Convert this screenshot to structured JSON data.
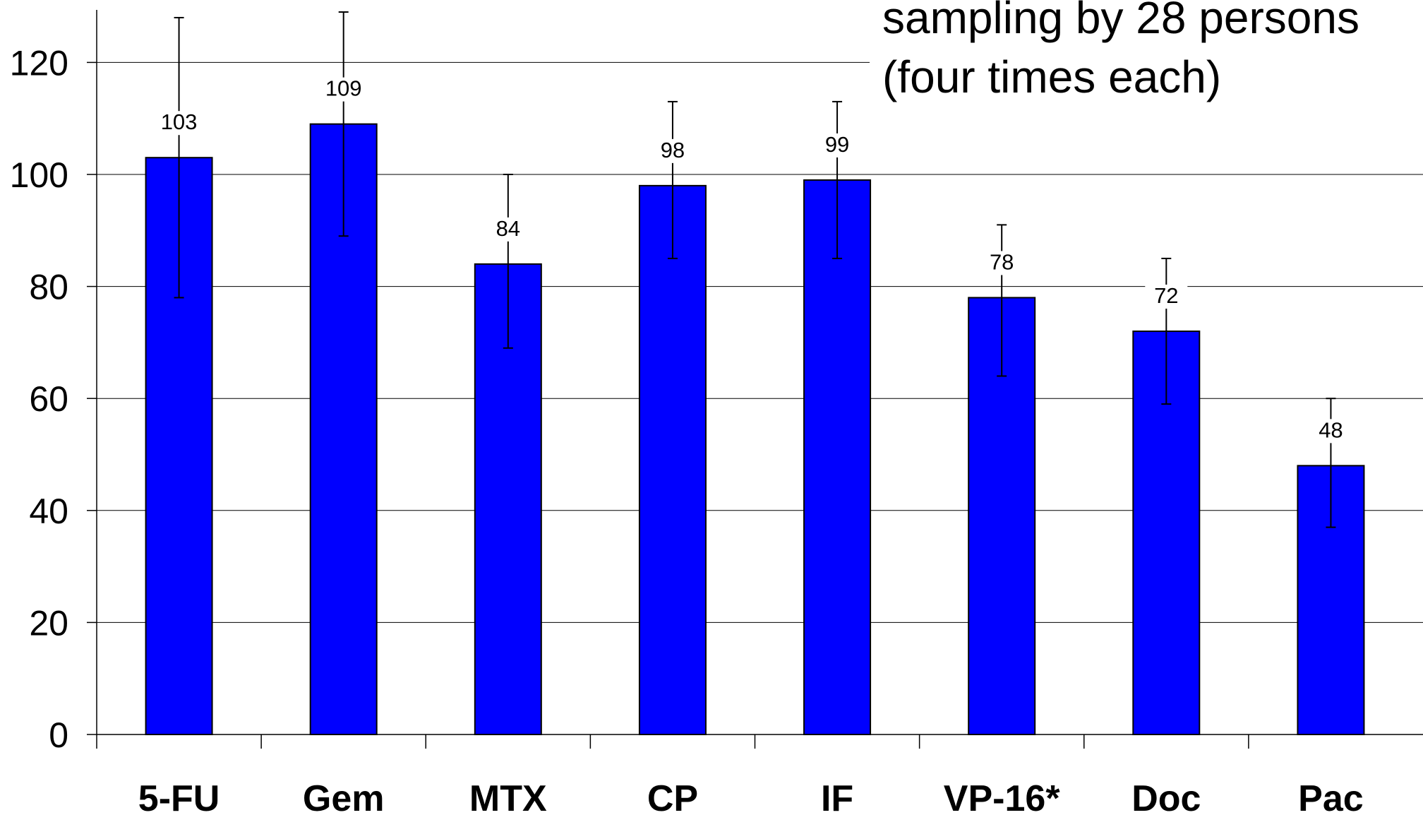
{
  "chart_data": {
    "type": "bar",
    "title": "",
    "xlabel": "",
    "ylabel": "",
    "ylim": [
      0,
      130
    ],
    "yticks": [
      0,
      20,
      40,
      60,
      80,
      100,
      120
    ],
    "grid": true,
    "categories": [
      "5-FU",
      "Gem",
      "MTX",
      "CP",
      "IF",
      "VP-16*",
      "Doc",
      "Pac"
    ],
    "values": [
      103,
      109,
      84,
      98,
      99,
      78,
      72,
      48
    ],
    "error_low": [
      78,
      89,
      69,
      85,
      85,
      64,
      59,
      37
    ],
    "error_high": [
      128,
      129,
      100,
      113,
      113,
      91,
      85,
      60
    ],
    "annotation_lines": [
      "sampling by 28 persons",
      "(four times each)"
    ],
    "colors": {
      "bar": "#0000ff",
      "bar_outline": "#000000",
      "grid": "#000000"
    }
  }
}
